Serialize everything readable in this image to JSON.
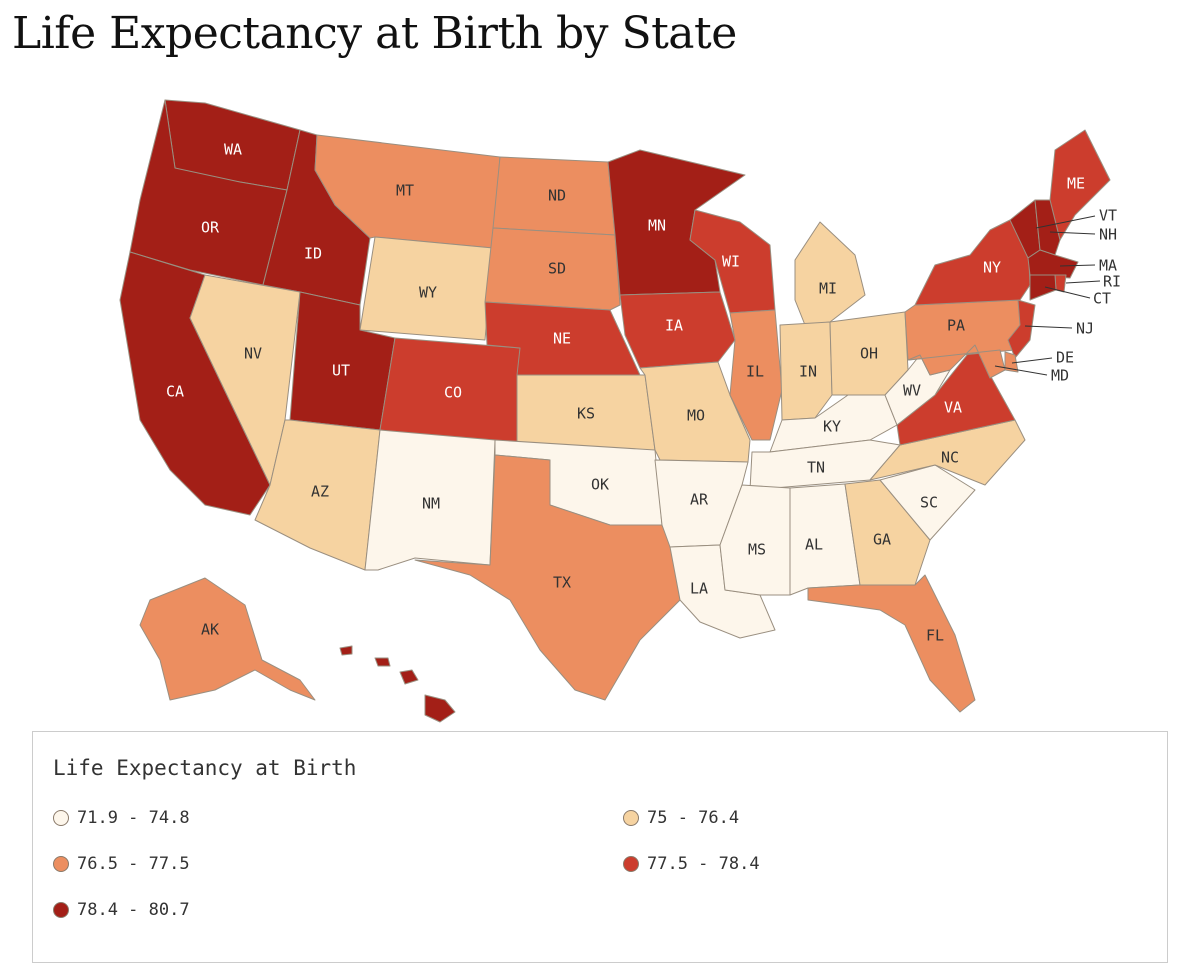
{
  "title": "Life Expectancy at Birth by State",
  "legend": {
    "title": "Life Expectancy at Birth",
    "bins": [
      {
        "label": "71.9 - 74.8",
        "color": "#fdf6eb"
      },
      {
        "label": "75 - 76.4",
        "color": "#f6d3a1"
      },
      {
        "label": "76.5 - 77.5",
        "color": "#ec8e60"
      },
      {
        "label": "77.5 - 78.4",
        "color": "#cc3d2d"
      },
      {
        "label": "78.4 - 80.7",
        "color": "#a31f17"
      }
    ]
  },
  "states": [
    {
      "id": "WA",
      "bin": 4
    },
    {
      "id": "OR",
      "bin": 4
    },
    {
      "id": "CA",
      "bin": 4
    },
    {
      "id": "ID",
      "bin": 4
    },
    {
      "id": "NV",
      "bin": 1
    },
    {
      "id": "MT",
      "bin": 2
    },
    {
      "id": "WY",
      "bin": 1
    },
    {
      "id": "UT",
      "bin": 4
    },
    {
      "id": "AZ",
      "bin": 1
    },
    {
      "id": "CO",
      "bin": 3
    },
    {
      "id": "NM",
      "bin": 0
    },
    {
      "id": "ND",
      "bin": 2
    },
    {
      "id": "SD",
      "bin": 2
    },
    {
      "id": "NE",
      "bin": 3
    },
    {
      "id": "KS",
      "bin": 1
    },
    {
      "id": "OK",
      "bin": 0
    },
    {
      "id": "TX",
      "bin": 2
    },
    {
      "id": "MN",
      "bin": 4
    },
    {
      "id": "IA",
      "bin": 3
    },
    {
      "id": "MO",
      "bin": 1
    },
    {
      "id": "AR",
      "bin": 0
    },
    {
      "id": "LA",
      "bin": 0
    },
    {
      "id": "WI",
      "bin": 3
    },
    {
      "id": "IL",
      "bin": 2
    },
    {
      "id": "MI",
      "bin": 1
    },
    {
      "id": "IN",
      "bin": 1
    },
    {
      "id": "OH",
      "bin": 1
    },
    {
      "id": "KY",
      "bin": 0
    },
    {
      "id": "TN",
      "bin": 0
    },
    {
      "id": "MS",
      "bin": 0
    },
    {
      "id": "AL",
      "bin": 0
    },
    {
      "id": "GA",
      "bin": 1
    },
    {
      "id": "FL",
      "bin": 2
    },
    {
      "id": "SC",
      "bin": 0
    },
    {
      "id": "NC",
      "bin": 1
    },
    {
      "id": "VA",
      "bin": 3
    },
    {
      "id": "WV",
      "bin": 0
    },
    {
      "id": "PA",
      "bin": 2
    },
    {
      "id": "NY",
      "bin": 3
    },
    {
      "id": "ME",
      "bin": 3
    },
    {
      "id": "VT",
      "bin": 4
    },
    {
      "id": "NH",
      "bin": 4
    },
    {
      "id": "MA",
      "bin": 4
    },
    {
      "id": "RI",
      "bin": 3
    },
    {
      "id": "CT",
      "bin": 4
    },
    {
      "id": "NJ",
      "bin": 3
    },
    {
      "id": "DE",
      "bin": 2
    },
    {
      "id": "MD",
      "bin": 2
    },
    {
      "id": "AK",
      "bin": 2
    },
    {
      "id": "HI",
      "bin": 4
    }
  ]
}
